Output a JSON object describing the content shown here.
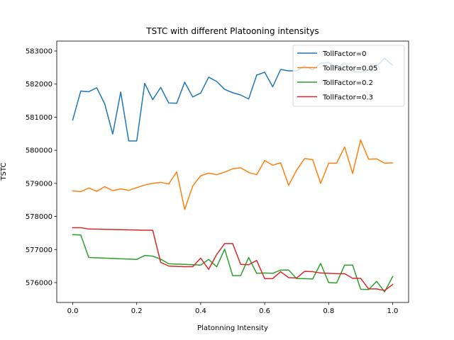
{
  "chart_data": {
    "type": "line",
    "title": "TSTC with different Platooning intensitys",
    "xlabel": "Platonning Intensity",
    "ylabel": "TSTC",
    "xlim": [
      -0.05,
      1.05
    ],
    "ylim": [
      575400,
      583300
    ],
    "xticks": [
      0.0,
      0.2,
      0.4,
      0.6,
      0.8,
      1.0
    ],
    "xtick_labels": [
      "0.0",
      "0.2",
      "0.4",
      "0.6",
      "0.8",
      "1.0"
    ],
    "yticks": [
      576000,
      577000,
      578000,
      579000,
      580000,
      581000,
      582000,
      583000
    ],
    "ytick_labels": [
      "576000",
      "577000",
      "578000",
      "579000",
      "580000",
      "581000",
      "582000",
      "583000"
    ],
    "legend_position": "top-right",
    "grid": false,
    "x": [
      0.0,
      0.025,
      0.05,
      0.075,
      0.1,
      0.125,
      0.15,
      0.175,
      0.2,
      0.225,
      0.25,
      0.275,
      0.3,
      0.325,
      0.35,
      0.375,
      0.4,
      0.425,
      0.45,
      0.475,
      0.5,
      0.525,
      0.55,
      0.575,
      0.6,
      0.625,
      0.65,
      0.675,
      0.7,
      0.725,
      0.75,
      0.775,
      0.8,
      0.825,
      0.85,
      0.875,
      0.9,
      0.925,
      0.95,
      0.975,
      1.0
    ],
    "series": [
      {
        "name": "TollFactor=0",
        "color": "#1f77b4",
        "values": [
          580920,
          581790,
          581770,
          581890,
          581400,
          580490,
          581760,
          580280,
          580280,
          582020,
          581530,
          581900,
          581430,
          581420,
          582060,
          581610,
          581730,
          582210,
          582080,
          581840,
          581740,
          581670,
          581550,
          582270,
          582360,
          581920,
          582440,
          582400,
          582400,
          582550,
          582430,
          582630,
          582660,
          582480,
          582640,
          582380,
          582360,
          582420,
          582550,
          582780,
          582570
        ]
      },
      {
        "name": "TollFactor=0.05",
        "color": "#ff7f0e",
        "values": [
          578770,
          578750,
          578860,
          578760,
          578900,
          578780,
          578830,
          578790,
          578870,
          578950,
          579000,
          579030,
          578980,
          579350,
          578210,
          578920,
          579230,
          579310,
          579260,
          579340,
          579440,
          579470,
          579330,
          579260,
          579690,
          579550,
          579620,
          578940,
          579400,
          579750,
          579720,
          579000,
          579610,
          579610,
          580100,
          579300,
          580310,
          579730,
          579740,
          579610,
          579620
        ]
      },
      {
        "name": "TollFactor=0.2",
        "color": "#2ca02c",
        "values": [
          577450,
          577440,
          576760,
          576750,
          576740,
          576730,
          576720,
          576710,
          576700,
          576820,
          576800,
          576710,
          576570,
          576560,
          576550,
          576540,
          576530,
          576700,
          576480,
          577010,
          576210,
          576210,
          576760,
          576280,
          576290,
          576280,
          576380,
          576380,
          576120,
          576120,
          576110,
          576580,
          576000,
          575990,
          576530,
          576530,
          575800,
          575790,
          576040,
          575720,
          576180
        ]
      },
      {
        "name": "TollFactor=0.3",
        "color": "#d62728",
        "values": [
          577660,
          577660,
          577620,
          577615,
          577610,
          577605,
          577600,
          577595,
          577590,
          577585,
          577580,
          576610,
          576500,
          576490,
          576480,
          576480,
          576740,
          576400,
          576850,
          577180,
          577180,
          576550,
          576540,
          576670,
          576120,
          576120,
          576330,
          576150,
          576140,
          576340,
          576330,
          576290,
          576280,
          576270,
          576270,
          576130,
          576130,
          575810,
          575810,
          575760,
          575940
        ]
      }
    ]
  }
}
